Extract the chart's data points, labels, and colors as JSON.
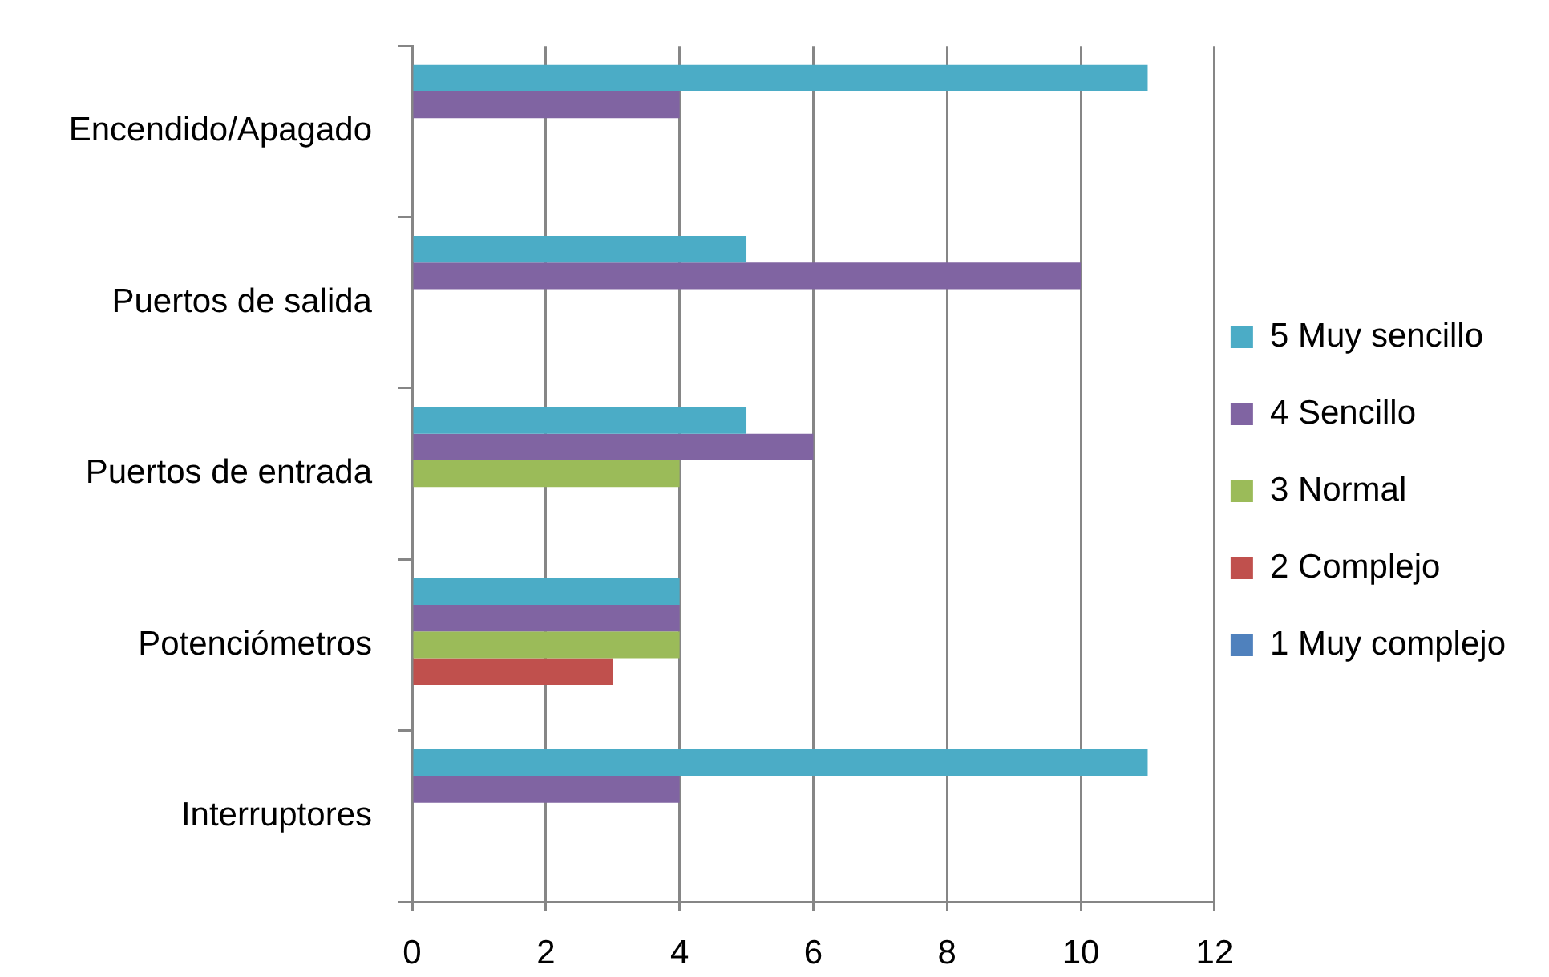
{
  "chart_data": {
    "type": "bar",
    "orientation": "horizontal",
    "categories": [
      "Encendido/Apagado",
      "Puertos de salida",
      "Puertos de entrada",
      "Potenciómetros",
      "Interruptores"
    ],
    "series": [
      {
        "name": "5 Muy sencillo",
        "color": "#4bacc6",
        "values": [
          11,
          5,
          5,
          4,
          11
        ]
      },
      {
        "name": "4 Sencillo",
        "color": "#8064a2",
        "values": [
          4,
          10,
          6,
          4,
          4
        ]
      },
      {
        "name": "3 Normal",
        "color": "#9bbb59",
        "values": [
          0,
          0,
          4,
          4,
          0
        ]
      },
      {
        "name": "2 Complejo",
        "color": "#c0504d",
        "values": [
          0,
          0,
          0,
          3,
          0
        ]
      },
      {
        "name": "1 Muy complejo",
        "color": "#4f81bd",
        "values": [
          0,
          0,
          0,
          0,
          0
        ]
      }
    ],
    "xlim": [
      0,
      12
    ],
    "xticks": [
      0,
      2,
      4,
      6,
      8,
      10,
      12
    ],
    "grid": "x",
    "legend": "right"
  }
}
